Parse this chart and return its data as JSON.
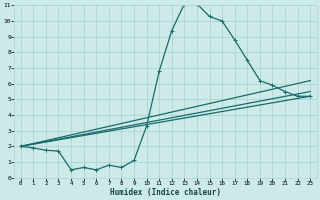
{
  "bg_color": "#cceae8",
  "grid_color": "#aed4d2",
  "line_color": "#1a6b6b",
  "xlabel": "Humidex (Indice chaleur)",
  "xlim": [
    -0.5,
    23.5
  ],
  "ylim": [
    0,
    11
  ],
  "xtick_vals": [
    0,
    1,
    2,
    3,
    4,
    5,
    6,
    7,
    8,
    9,
    10,
    11,
    12,
    13,
    14,
    15,
    16,
    17,
    18,
    19,
    20,
    21,
    22,
    23
  ],
  "ytick_vals": [
    0,
    1,
    2,
    3,
    4,
    5,
    6,
    7,
    8,
    9,
    10,
    11
  ],
  "series1_x": [
    0,
    1,
    2,
    3,
    4,
    5,
    6,
    7,
    8,
    9,
    10,
    11,
    12,
    13,
    14,
    15,
    16,
    17,
    18,
    19,
    20,
    21,
    22,
    23
  ],
  "series1_y": [
    2.0,
    1.9,
    1.75,
    1.7,
    0.5,
    0.65,
    0.5,
    0.8,
    0.65,
    1.1,
    3.3,
    6.8,
    9.4,
    11.1,
    11.1,
    10.3,
    10.0,
    8.8,
    7.5,
    6.2,
    5.9,
    5.5,
    5.2,
    5.2
  ],
  "series2_x": [
    0,
    23
  ],
  "series2_y": [
    2.0,
    6.2
  ],
  "series3_x": [
    0,
    23
  ],
  "series3_y": [
    2.0,
    5.5
  ],
  "series4_x": [
    0,
    23
  ],
  "series4_y": [
    2.0,
    5.2
  ]
}
